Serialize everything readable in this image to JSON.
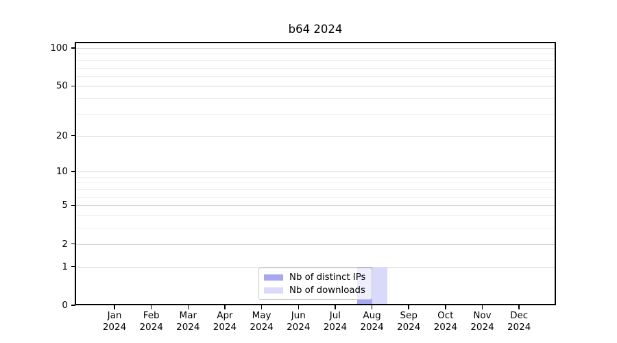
{
  "chart_data": {
    "type": "bar",
    "title": "b64 2024",
    "categories": [
      "Jan 2024",
      "Feb 2024",
      "Mar 2024",
      "Apr 2024",
      "May 2024",
      "Jun 2024",
      "Jul 2024",
      "Aug 2024",
      "Sep 2024",
      "Oct 2024",
      "Nov 2024",
      "Dec 2024"
    ],
    "series": [
      {
        "name": "Nb of distinct IPs",
        "color": "#a8a8f2",
        "values": [
          0,
          0,
          0,
          0,
          0,
          0,
          0,
          1,
          0,
          0,
          0,
          0
        ]
      },
      {
        "name": "Nb of downloads",
        "color": "#d9d9fa",
        "values": [
          0,
          0,
          0,
          0,
          0,
          0,
          0,
          1,
          0,
          0,
          0,
          0
        ]
      }
    ],
    "y_scale": "log1p",
    "ylim": [
      0,
      100
    ],
    "y_ticks": [
      0,
      1,
      2,
      5,
      10,
      20,
      50,
      100
    ],
    "y_minor_gridlines": [
      3,
      4,
      6,
      7,
      8,
      9,
      30,
      40,
      60,
      70,
      80,
      90
    ],
    "xlabel": "",
    "ylabel": "",
    "grid": true,
    "legend_position": "bottom-center",
    "background_color": "#ffffff",
    "major_grid_color": "#d4d4d4",
    "minor_grid_color": "#ededed"
  }
}
